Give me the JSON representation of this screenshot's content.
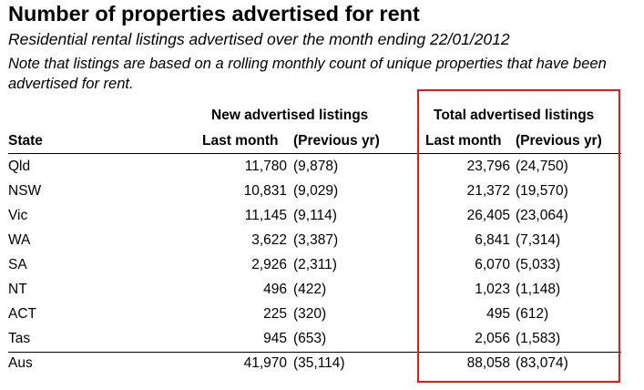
{
  "header": {
    "title": "Number of properties advertised for rent",
    "subtitle": "Residential rental listings advertised over the month ending 22/01/2012",
    "note": "Note that listings are based on a rolling monthly count of unique properties that have been advertised for rent."
  },
  "table": {
    "col_state": "State",
    "group_new": "New advertised listings",
    "group_total": "Total advertised listings",
    "sub_last": "Last month",
    "sub_prev": "(Previous yr)"
  },
  "chart_data": {
    "type": "table",
    "title": "Number of properties advertised for rent",
    "columns": [
      "State",
      "New advertised listings — Last month",
      "New advertised listings — (Previous yr)",
      "Total advertised listings — Last month",
      "Total advertised listings — (Previous yr)"
    ],
    "rows": [
      {
        "state": "Qld",
        "new_last": "11,780",
        "new_prev": "(9,878)",
        "total_last": "23,796",
        "total_prev": "(24,750)"
      },
      {
        "state": "NSW",
        "new_last": "10,831",
        "new_prev": "(9,029)",
        "total_last": "21,372",
        "total_prev": "(19,570)"
      },
      {
        "state": "Vic",
        "new_last": "11,145",
        "new_prev": "(9,114)",
        "total_last": "26,405",
        "total_prev": "(23,064)"
      },
      {
        "state": "WA",
        "new_last": "3,622",
        "new_prev": "(3,387)",
        "total_last": "6,841",
        "total_prev": "(7,314)"
      },
      {
        "state": "SA",
        "new_last": "2,926",
        "new_prev": "(2,311)",
        "total_last": "6,070",
        "total_prev": "(5,033)"
      },
      {
        "state": "NT",
        "new_last": "496",
        "new_prev": "(422)",
        "total_last": "1,023",
        "total_prev": "(1,148)"
      },
      {
        "state": "ACT",
        "new_last": "225",
        "new_prev": "(320)",
        "total_last": "495",
        "total_prev": "(612)"
      },
      {
        "state": "Tas",
        "new_last": "945",
        "new_prev": "(653)",
        "total_last": "2,056",
        "total_prev": "(1,583)"
      },
      {
        "state": "Aus",
        "new_last": "41,970",
        "new_prev": "(35,114)",
        "total_last": "88,058",
        "total_prev": "(83,074)"
      }
    ],
    "highlight_color": "#e01b1b"
  }
}
